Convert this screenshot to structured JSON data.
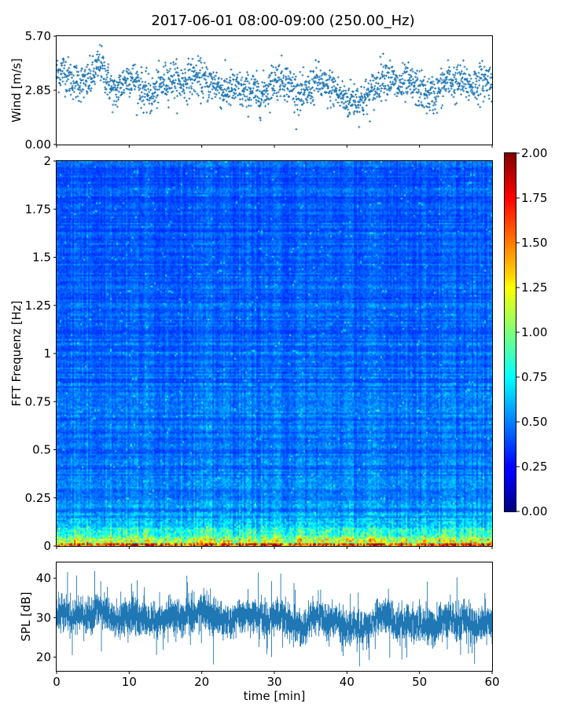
{
  "figure": {
    "title": "2017-06-01 08:00-09:00 (250.00_Hz)"
  },
  "chart_data": [
    {
      "type": "scatter",
      "name": "wind",
      "ylabel": "Wind [m/s]",
      "xlim": [
        0,
        60
      ],
      "ylim": [
        0,
        5.7
      ],
      "yticks": [
        "0.00",
        "2.85",
        "5.70"
      ],
      "yticks_values": [
        0,
        2.85,
        5.7
      ],
      "marker": "+",
      "color": "#1f77b4",
      "x_shared_with": "spl",
      "trend": {
        "x": [
          0,
          1,
          2,
          3,
          4,
          5,
          6,
          7,
          8,
          9,
          10,
          11,
          12,
          13,
          14,
          15,
          16,
          17,
          18,
          19,
          20,
          21,
          22,
          23,
          24,
          25,
          26,
          27,
          28,
          29,
          30,
          31,
          32,
          33,
          34,
          35,
          36,
          37,
          38,
          39,
          40,
          41,
          42,
          43,
          44,
          45,
          46,
          47,
          48,
          49,
          50,
          51,
          52,
          53,
          54,
          55,
          56,
          57,
          58,
          59,
          60
        ],
        "y": [
          3.7,
          3.9,
          3.4,
          3.3,
          3.2,
          3.6,
          4.3,
          3.4,
          2.6,
          3.2,
          3.6,
          3.3,
          2.8,
          2.5,
          3.0,
          3.3,
          3.5,
          3.2,
          3.4,
          3.6,
          3.4,
          3.2,
          3.2,
          2.8,
          2.9,
          2.9,
          2.7,
          2.9,
          2.5,
          2.9,
          3.4,
          3.5,
          3.2,
          2.8,
          2.5,
          3.0,
          3.4,
          2.9,
          3.0,
          2.6,
          2.3,
          2.4,
          2.3,
          2.6,
          3.0,
          3.7,
          3.5,
          3.0,
          3.2,
          3.1,
          2.9,
          2.6,
          2.6,
          3.0,
          3.4,
          3.2,
          3.3,
          3.1,
          3.2,
          3.4,
          3.3
        ]
      },
      "spread": 0.9,
      "n_points": 1900
    },
    {
      "type": "heatmap",
      "name": "spectrogram",
      "ylabel": "FFT Frequenz [Hz]",
      "xlim": [
        0,
        60
      ],
      "ylim": [
        0,
        2
      ],
      "yticks": [
        "0",
        "0.25",
        "0.5",
        "0.75",
        "1",
        "1.25",
        "1.5",
        "1.75",
        "2"
      ],
      "yticks_values": [
        0,
        0.25,
        0.5,
        0.75,
        1,
        1.25,
        1.5,
        1.75,
        2
      ],
      "colormap": "jet",
      "vmin": 0,
      "vmax": 2,
      "colorbar_ticks": [
        "0.00",
        "0.25",
        "0.50",
        "0.75",
        "1.00",
        "1.25",
        "1.50",
        "1.75",
        "2.00"
      ],
      "colorbar_ticks_values": [
        0,
        0.25,
        0.5,
        0.75,
        1,
        1.25,
        1.5,
        1.75,
        2
      ],
      "description_levels": {
        "freq": [
          0,
          0.02,
          0.05,
          0.1,
          0.2,
          0.5,
          1,
          1.5,
          2
        ],
        "typical_value": [
          1.7,
          1.3,
          0.75,
          0.5,
          0.35,
          0.3,
          0.28,
          0.26,
          0.25
        ]
      }
    },
    {
      "type": "area",
      "name": "spl",
      "ylabel": "SPL [dB]",
      "xlabel": "time [min]",
      "xlim": [
        0,
        60
      ],
      "ylim": [
        16.5,
        44
      ],
      "yticks": [
        "20",
        "30",
        "40"
      ],
      "yticks_values": [
        20,
        30,
        40
      ],
      "xticks": [
        "0",
        "10",
        "20",
        "30",
        "40",
        "50",
        "60"
      ],
      "xticks_values": [
        0,
        10,
        20,
        30,
        40,
        50,
        60
      ],
      "color": "#1f77b4",
      "trend": {
        "x": [
          0,
          1,
          2,
          3,
          4,
          5,
          6,
          7,
          8,
          9,
          10,
          11,
          12,
          13,
          14,
          15,
          16,
          17,
          18,
          19,
          20,
          21,
          22,
          23,
          24,
          25,
          26,
          27,
          28,
          29,
          30,
          31,
          32,
          33,
          34,
          35,
          36,
          37,
          38,
          39,
          40,
          41,
          42,
          43,
          44,
          45,
          46,
          47,
          48,
          49,
          50,
          51,
          52,
          53,
          54,
          55,
          56,
          57,
          58,
          59,
          60
        ],
        "y": [
          31,
          32,
          30,
          31,
          30,
          31,
          33,
          31,
          29,
          30,
          31,
          30,
          30,
          29,
          29,
          30,
          31,
          30,
          30,
          31,
          32,
          30,
          30,
          29,
          29,
          30,
          30,
          31,
          30,
          29,
          30,
          31,
          29,
          28,
          27,
          29,
          31,
          29,
          30,
          28,
          27,
          28,
          27,
          28,
          29,
          31,
          30,
          28,
          29,
          29,
          28,
          28,
          27,
          29,
          30,
          29,
          30,
          29,
          28,
          29,
          29
        ]
      },
      "band_halfwidth": 2.4,
      "n_samples": 720
    }
  ]
}
